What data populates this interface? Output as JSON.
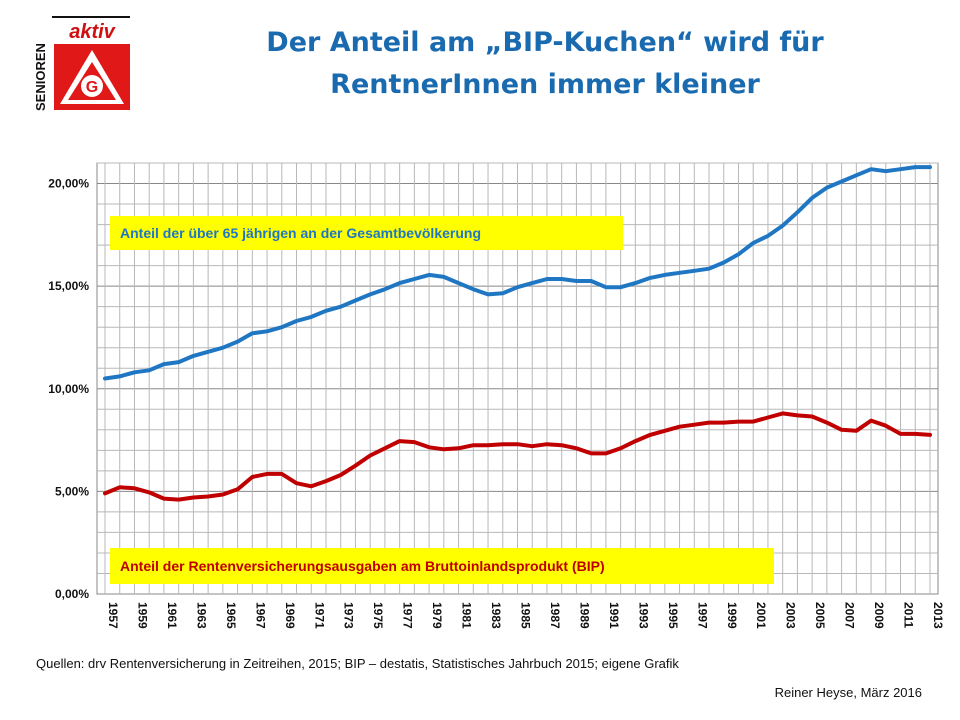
{
  "logo": {
    "top_text": "aktiv",
    "side_text": "SENIOREN",
    "emblem": "IG-metall-emblem"
  },
  "title": {
    "line1": "Der Anteil am „BIP-Kuchen“ wird für",
    "line2": "RentnerInnen immer kleiner"
  },
  "source": "Quellen: drv Rentenversicherung in Zeitreihen, 2015; BIP – destatis, Statistisches Jahrbuch 2015; eigene Grafik",
  "author": "Reiner Heyse, März 2016",
  "colors": {
    "title": "#1a6ab0",
    "elderly_series": "#1f77c4",
    "pension_series": "#c00000",
    "annotation_bg": "#ffff00"
  },
  "chart_data": {
    "type": "line",
    "title": "",
    "xlabel": "",
    "ylabel": "",
    "ylim": [
      0,
      21
    ],
    "yticks": [
      "0,00%",
      "5,00%",
      "10,00%",
      "15,00%",
      "20,00%"
    ],
    "ytick_values": [
      0,
      5,
      10,
      15,
      20
    ],
    "xlim": [
      1957,
      2013
    ],
    "xtick_labels": [
      "1957",
      "1959",
      "1961",
      "1963",
      "1965",
      "1967",
      "1969",
      "1971",
      "1973",
      "1975",
      "1977",
      "1979",
      "1981",
      "1983",
      "1985",
      "1987",
      "1989",
      "1991",
      "1993",
      "1995",
      "1997",
      "1999",
      "2001",
      "2003",
      "2005",
      "2007",
      "2009",
      "2011",
      "2013"
    ],
    "grid": true,
    "x": [
      1957,
      1958,
      1959,
      1960,
      1961,
      1962,
      1963,
      1964,
      1965,
      1966,
      1967,
      1968,
      1969,
      1970,
      1971,
      1972,
      1973,
      1974,
      1975,
      1976,
      1977,
      1978,
      1979,
      1980,
      1981,
      1982,
      1983,
      1984,
      1985,
      1986,
      1987,
      1988,
      1989,
      1990,
      1991,
      1992,
      1993,
      1994,
      1995,
      1996,
      1997,
      1998,
      1999,
      2000,
      2001,
      2002,
      2003,
      2004,
      2005,
      2006,
      2007,
      2008,
      2009,
      2010,
      2011,
      2012,
      2013
    ],
    "series": [
      {
        "color": "#1f77c4",
        "values": [
          10.5,
          10.6,
          10.8,
          10.9,
          11.2,
          11.3,
          11.6,
          11.8,
          12.0,
          12.3,
          12.7,
          12.8,
          13.0,
          13.3,
          13.5,
          13.8,
          14.0,
          14.3,
          14.6,
          14.85,
          15.15,
          15.35,
          15.55,
          15.45,
          15.15,
          14.85,
          14.6,
          14.65,
          14.95,
          15.15,
          15.35,
          15.35,
          15.25,
          15.25,
          14.95,
          14.95,
          15.15,
          15.4,
          15.55,
          15.65,
          15.75,
          15.85,
          16.15,
          16.55,
          17.1,
          17.45,
          17.95,
          18.6,
          19.3,
          19.8,
          20.1,
          20.4,
          20.7,
          20.6,
          20.7,
          20.8,
          20.8
        ]
      },
      {
        "color": "#c00000",
        "values": [
          4.9,
          5.2,
          5.15,
          4.95,
          4.65,
          4.6,
          4.7,
          4.75,
          4.85,
          5.1,
          5.7,
          5.85,
          5.85,
          5.4,
          5.25,
          5.5,
          5.8,
          6.25,
          6.75,
          7.1,
          7.45,
          7.4,
          7.15,
          7.05,
          7.1,
          7.25,
          7.25,
          7.3,
          7.3,
          7.2,
          7.3,
          7.25,
          7.1,
          6.85,
          6.85,
          7.1,
          7.45,
          7.75,
          7.95,
          8.15,
          8.25,
          8.35,
          8.35,
          8.4,
          8.4,
          8.6,
          8.8,
          8.7,
          8.65,
          8.35,
          8.0,
          7.95,
          8.45,
          8.2,
          7.8,
          7.8,
          7.75
        ]
      }
    ],
    "annotations": [
      {
        "text": "Anteil der über 65 jährigen an der Gesamtbevölkerung",
        "color": "#1f77c4"
      },
      {
        "text": "Anteil der Rentenversicherungsausgaben am Bruttoinlandsprodukt (BIP)",
        "color": "#c00000"
      }
    ]
  }
}
